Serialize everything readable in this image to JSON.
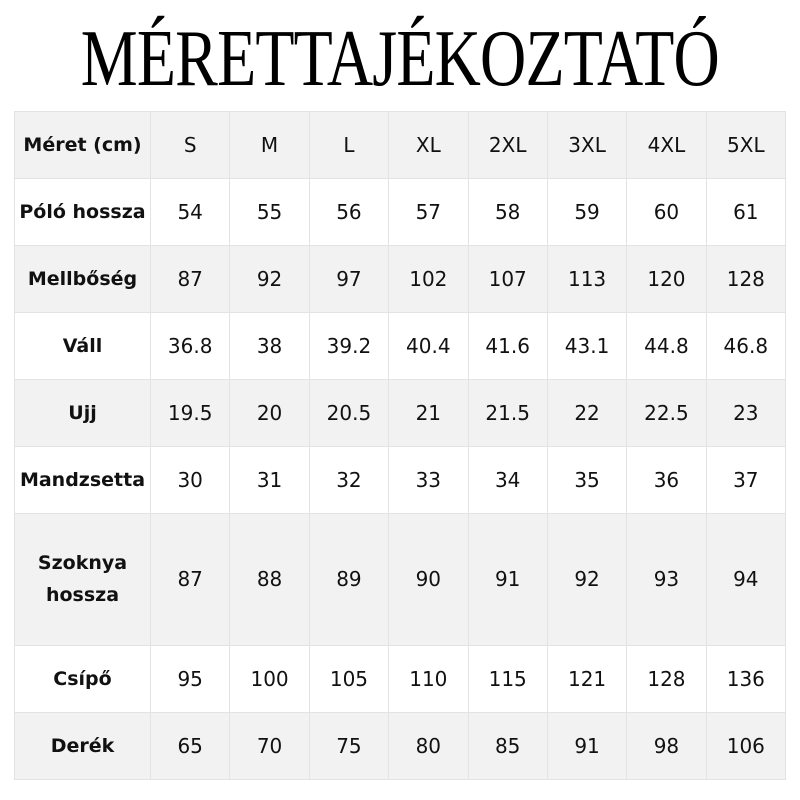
{
  "title": "MÉRETTAJÉKOZTATÓ",
  "table": {
    "header": [
      "Méret (cm)",
      "S",
      "M",
      "L",
      "XL",
      "2XL",
      "3XL",
      "4XL",
      "5XL"
    ],
    "rows": [
      {
        "label": "Póló hossza",
        "values": [
          "54",
          "55",
          "56",
          "57",
          "58",
          "59",
          "60",
          "61"
        ]
      },
      {
        "label": "Mellbőség",
        "values": [
          "87",
          "92",
          "97",
          "102",
          "107",
          "113",
          "120",
          "128"
        ]
      },
      {
        "label": "Váll",
        "values": [
          "36.8",
          "38",
          "39.2",
          "40.4",
          "41.6",
          "43.1",
          "44.8",
          "46.8"
        ]
      },
      {
        "label": "Ujj",
        "values": [
          "19.5",
          "20",
          "20.5",
          "21",
          "21.5",
          "22",
          "22.5",
          "23"
        ]
      },
      {
        "label": "Mandzsetta",
        "values": [
          "30",
          "31",
          "32",
          "33",
          "34",
          "35",
          "36",
          "37"
        ]
      },
      {
        "label": "Szoknya hossza",
        "values": [
          "87",
          "88",
          "89",
          "90",
          "91",
          "92",
          "93",
          "94"
        ]
      },
      {
        "label": "Csípő",
        "values": [
          "95",
          "100",
          "105",
          "110",
          "115",
          "121",
          "128",
          "136"
        ]
      },
      {
        "label": "Derék",
        "values": [
          "65",
          "70",
          "75",
          "80",
          "85",
          "91",
          "98",
          "106"
        ]
      }
    ]
  },
  "colors": {
    "row_alt": "#f2f2f2",
    "row": "#ffffff",
    "border": "#e3e3e3"
  }
}
